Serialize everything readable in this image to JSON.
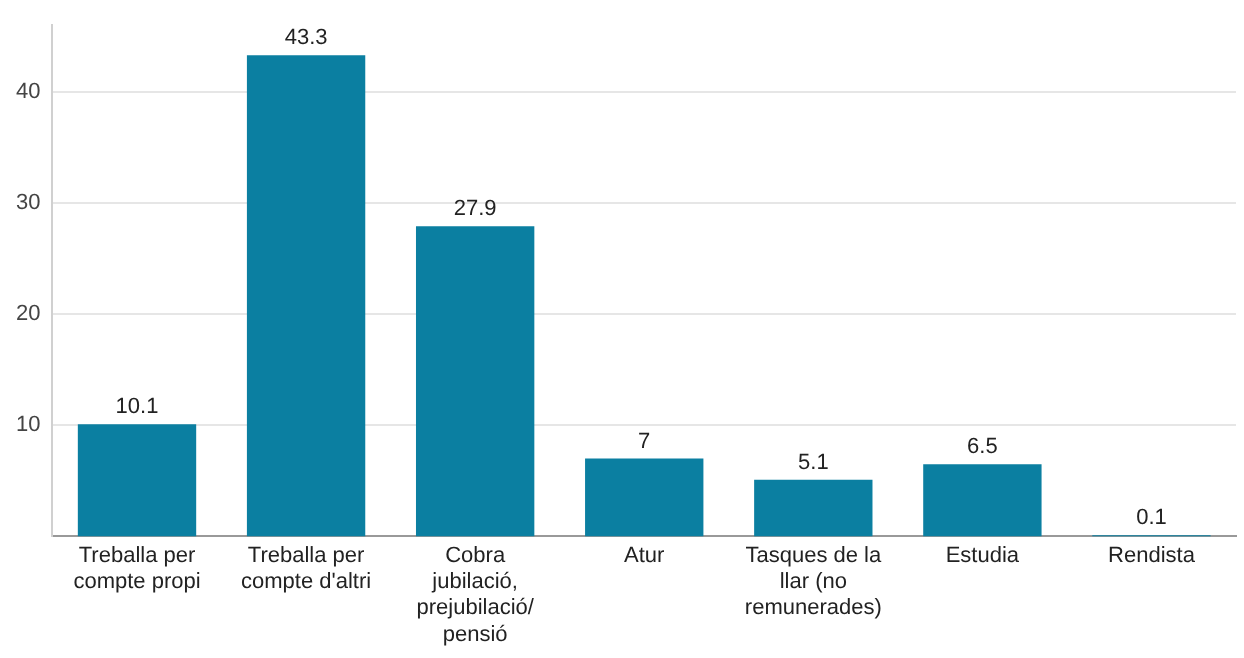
{
  "chart_data": {
    "type": "bar",
    "categories": [
      "Treballa per compte propi",
      "Treballa per compte d'altri",
      "Cobra jubilació, prejubilació/ pensió",
      "Atur",
      "Tasques de la llar (no remunerades)",
      "Estudia",
      "Rendista"
    ],
    "values": [
      10.1,
      43.3,
      27.9,
      7,
      5.1,
      6.5,
      0.1
    ],
    "color": "#0b7fa1",
    "ylim": [
      0,
      46
    ],
    "yticks": [
      10,
      20,
      30,
      40
    ],
    "grid": "y",
    "data_labels": true,
    "legend": false
  }
}
